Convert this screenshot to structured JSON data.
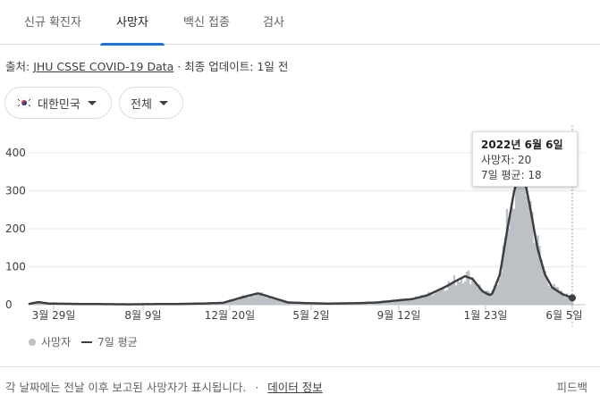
{
  "tabs": [
    {
      "label": "신규 확진자",
      "active": false
    },
    {
      "label": "사망자",
      "active": true
    },
    {
      "label": "백신 접종",
      "active": false
    },
    {
      "label": "검사",
      "active": false
    }
  ],
  "source": {
    "prefix": "출처:",
    "link": "JHU CSSE COVID-19 Data",
    "updated": " · 최종 업데이트: 1일 전"
  },
  "filters": {
    "country": "대한민국",
    "range": "전체"
  },
  "colors": {
    "accent": "#1a73e8",
    "bars": "#bdc1c6",
    "line": "#3c4043"
  },
  "tooltip": {
    "date": "2022년 6월 6일",
    "deaths": "사망자: 20",
    "avg": "7일 평균: 18"
  },
  "legend": {
    "deaths": "사망자",
    "avg": "7일 평균"
  },
  "footer": {
    "note": "각 날짜에는 전날 이후 보고된 사망자가 표시됩니다.",
    "sep": "·",
    "link": "데이터 정보",
    "feedback": "피드백"
  },
  "chart_data": {
    "type": "bar",
    "x_ticks": [
      "3월 29일",
      "8월 9일",
      "12월 20일",
      "5월 2일",
      "9월 12일",
      "1월 23일",
      "6월 5일"
    ],
    "ylim": [
      0,
      400
    ],
    "yticks": [
      0,
      100,
      200,
      300,
      400
    ],
    "series": [
      {
        "name": "사망자",
        "kind": "bar"
      },
      {
        "name": "7일 평균",
        "kind": "line"
      }
    ],
    "avg_keypoints": [
      [
        0,
        2
      ],
      [
        0.02,
        7
      ],
      [
        0.04,
        3
      ],
      [
        0.1,
        2
      ],
      [
        0.2,
        1
      ],
      [
        0.3,
        2
      ],
      [
        0.35,
        3
      ],
      [
        0.39,
        5
      ],
      [
        0.43,
        20
      ],
      [
        0.46,
        30
      ],
      [
        0.49,
        18
      ],
      [
        0.52,
        6
      ],
      [
        0.56,
        4
      ],
      [
        0.6,
        3
      ],
      [
        0.66,
        4
      ],
      [
        0.7,
        6
      ],
      [
        0.73,
        10
      ],
      [
        0.77,
        15
      ],
      [
        0.8,
        25
      ],
      [
        0.84,
        50
      ],
      [
        0.86,
        65
      ],
      [
        0.875,
        75
      ],
      [
        0.89,
        68
      ],
      [
        0.91,
        35
      ],
      [
        0.925,
        25
      ],
      [
        0.93,
        30
      ],
      [
        0.945,
        80
      ],
      [
        0.96,
        200
      ],
      [
        0.975,
        310
      ],
      [
        0.985,
        340
      ],
      [
        0.995,
        325
      ],
      [
        1.005,
        260
      ],
      [
        1.02,
        150
      ],
      [
        1.035,
        80
      ],
      [
        1.05,
        45
      ],
      [
        1.07,
        28
      ],
      [
        1.09,
        18
      ]
    ],
    "bar_peak": 470
  }
}
